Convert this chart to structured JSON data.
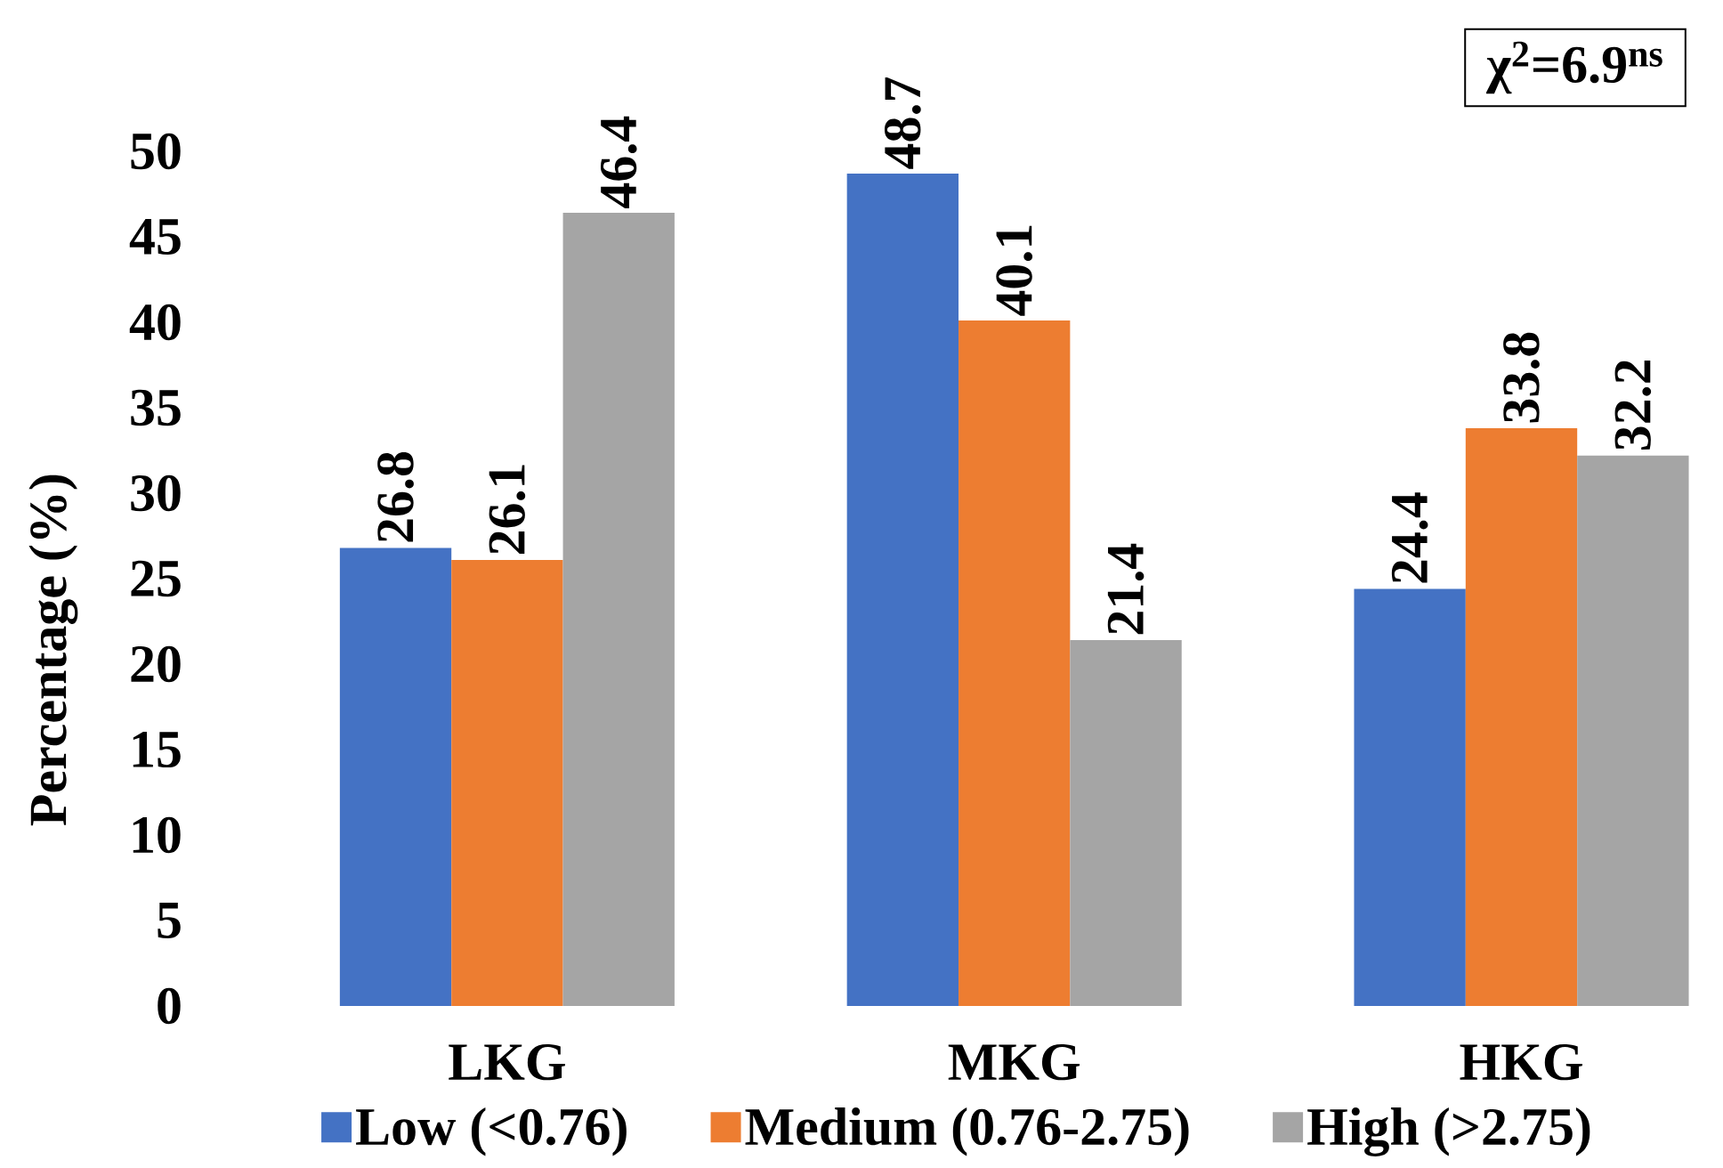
{
  "chart_data": {
    "type": "bar",
    "categories": [
      "LKG",
      "MKG",
      "HKG"
    ],
    "series": [
      {
        "name": "Low (<0.76)",
        "color": "#4472c4",
        "values": [
          26.8,
          48.7,
          24.4
        ]
      },
      {
        "name": "Medium (0.76-2.75)",
        "color": "#ed7d31",
        "values": [
          26.1,
          40.1,
          33.8
        ]
      },
      {
        "name": "High (>2.75)",
        "color": "#a5a5a5",
        "values": [
          46.4,
          21.4,
          32.2
        ]
      }
    ],
    "ylabel": "Percentage (%)",
    "ylim": [
      0,
      50
    ],
    "yticks": [
      0,
      5,
      10,
      15,
      20,
      25,
      30,
      35,
      40,
      45,
      50
    ],
    "annotations": [
      "χ$^{2}$=6.9$^{ns}$"
    ],
    "legend": "bottom",
    "data_labels": true
  }
}
